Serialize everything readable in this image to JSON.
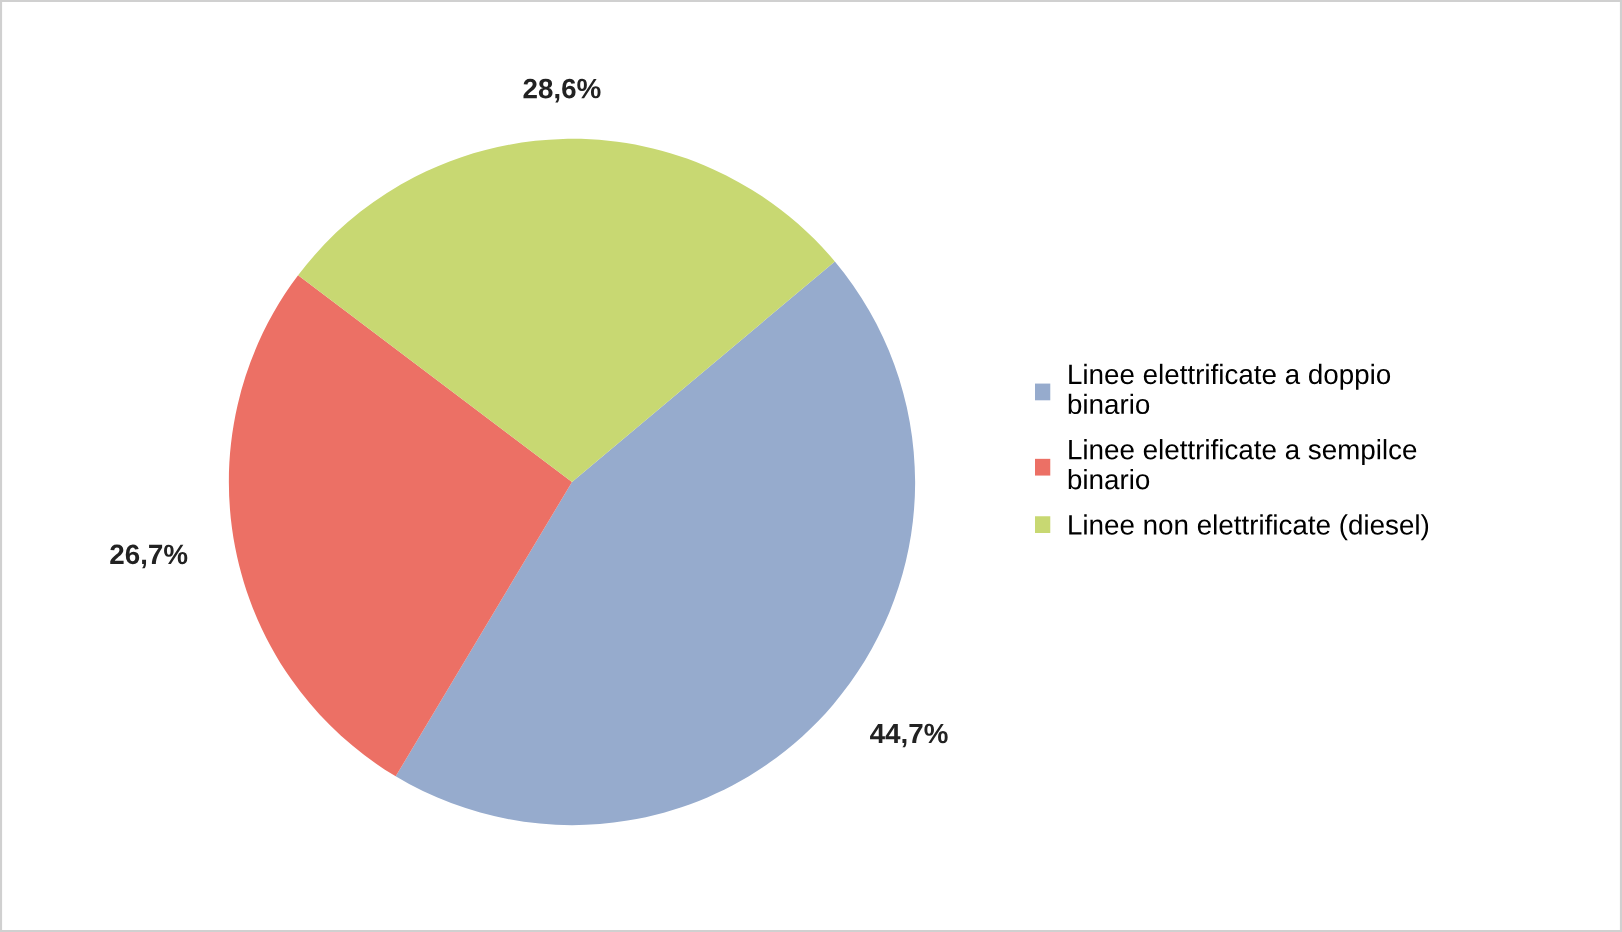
{
  "chart_data": {
    "type": "pie",
    "categories": [
      "Linee elettrificate a doppio\nbinario",
      "Linee elettrificate a sempilce\nbinario",
      "Linee non elettrificate (diesel)"
    ],
    "values": [
      44.7,
      26.7,
      28.6
    ],
    "colors": [
      "#96abcd",
      "#ec7065",
      "#c8d872"
    ],
    "value_labels": [
      "44,7%",
      "26,7%",
      "28,6%"
    ],
    "legend": "right"
  }
}
